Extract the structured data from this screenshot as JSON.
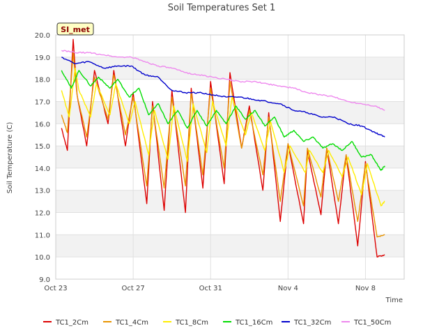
{
  "chart_data": {
    "type": "line",
    "title": "Soil Temperatures Set 1",
    "xlabel": "Time",
    "ylabel": "Soil Temperature (C)",
    "badge": "SI_met",
    "x_ticks": [
      "Oct 23",
      "Oct 27",
      "Oct 31",
      "Nov 4",
      "Nov 8"
    ],
    "x_tick_days": [
      0,
      4,
      8,
      12,
      16
    ],
    "xlim_days": [
      0,
      18
    ],
    "ylim": [
      9.0,
      20.0
    ],
    "y_ticks": [
      9.0,
      10.0,
      11.0,
      12.0,
      13.0,
      14.0,
      15.0,
      16.0,
      17.0,
      18.0,
      19.0,
      20.0
    ],
    "grid": true,
    "legend_position": "bottom",
    "series": [
      {
        "name": "TC1_2Cm",
        "color": "#dd0000",
        "x": [
          0.3,
          0.6,
          0.9,
          1.1,
          1.6,
          2.0,
          2.7,
          3.0,
          3.6,
          4.0,
          4.7,
          5.0,
          5.6,
          6.0,
          6.7,
          7.0,
          7.6,
          8.0,
          8.7,
          9.0,
          9.6,
          10.0,
          10.7,
          11.0,
          11.6,
          12.0,
          12.8,
          13.0,
          13.7,
          14.0,
          14.6,
          15.0,
          15.6,
          16.0,
          16.6,
          17.0
        ],
        "y": [
          15.8,
          14.8,
          19.8,
          17.3,
          15.0,
          18.4,
          16.0,
          18.4,
          15.0,
          17.4,
          12.4,
          17.0,
          12.1,
          17.5,
          12.0,
          17.6,
          13.1,
          17.9,
          13.3,
          18.3,
          14.9,
          16.8,
          13.0,
          16.5,
          11.6,
          15.1,
          11.5,
          14.8,
          11.9,
          14.9,
          11.5,
          14.6,
          10.5,
          14.3,
          10.0,
          10.1
        ]
      },
      {
        "name": "TC1_4Cm",
        "color": "#e89400",
        "x": [
          0.3,
          0.6,
          0.9,
          1.1,
          1.6,
          2.0,
          2.7,
          3.0,
          3.6,
          4.0,
          4.7,
          5.0,
          5.6,
          6.0,
          6.7,
          7.0,
          7.6,
          8.0,
          8.7,
          9.0,
          9.6,
          10.0,
          10.7,
          11.0,
          11.6,
          12.0,
          12.8,
          13.0,
          13.7,
          14.0,
          14.6,
          15.0,
          15.6,
          16.0,
          16.6,
          17.0
        ],
        "y": [
          16.4,
          15.6,
          19.2,
          17.3,
          15.4,
          18.1,
          16.2,
          18.2,
          15.5,
          17.2,
          13.2,
          16.8,
          13.1,
          17.2,
          13.2,
          17.4,
          13.7,
          17.6,
          14.0,
          17.9,
          14.9,
          16.6,
          13.7,
          16.3,
          12.5,
          15.1,
          12.3,
          14.9,
          12.7,
          14.9,
          12.5,
          14.6,
          11.6,
          14.2,
          10.9,
          11.0
        ]
      },
      {
        "name": "TC1_8Cm",
        "color": "#ffee00",
        "x": [
          0.3,
          0.7,
          1.0,
          1.2,
          1.8,
          2.1,
          2.8,
          3.1,
          3.8,
          4.1,
          4.8,
          5.1,
          5.8,
          6.1,
          6.8,
          7.1,
          7.8,
          8.1,
          8.8,
          9.1,
          9.8,
          10.1,
          10.8,
          11.1,
          11.8,
          12.1,
          12.9,
          13.1,
          13.8,
          14.1,
          14.8,
          15.1,
          15.8,
          16.1,
          16.8,
          17.0
        ],
        "y": [
          17.5,
          16.3,
          18.5,
          17.5,
          16.3,
          17.8,
          16.4,
          17.8,
          16.0,
          17.0,
          14.6,
          16.6,
          14.4,
          16.8,
          14.3,
          16.9,
          14.7,
          17.0,
          15.0,
          17.2,
          15.5,
          16.5,
          14.8,
          16.1,
          13.8,
          15.0,
          13.8,
          14.8,
          13.8,
          14.8,
          13.6,
          14.5,
          12.8,
          14.2,
          12.3,
          12.5
        ]
      },
      {
        "name": "TC1_16Cm",
        "color": "#00dd00",
        "x": [
          0.3,
          0.8,
          1.2,
          1.8,
          2.2,
          2.8,
          3.2,
          3.8,
          4.3,
          4.8,
          5.3,
          5.8,
          6.3,
          6.8,
          7.3,
          7.8,
          8.3,
          8.8,
          9.3,
          9.8,
          10.3,
          10.8,
          11.3,
          11.8,
          12.3,
          12.8,
          13.3,
          13.8,
          14.3,
          14.8,
          15.3,
          15.8,
          16.3,
          16.8,
          17.0
        ],
        "y": [
          18.4,
          17.6,
          18.4,
          17.7,
          18.1,
          17.6,
          18.0,
          17.2,
          17.6,
          16.4,
          16.9,
          16.0,
          16.6,
          15.8,
          16.6,
          15.9,
          16.6,
          16.0,
          16.8,
          16.2,
          16.6,
          15.9,
          16.3,
          15.4,
          15.7,
          15.2,
          15.4,
          14.9,
          15.1,
          14.8,
          15.2,
          14.5,
          14.6,
          13.9,
          14.1
        ]
      },
      {
        "name": "TC1_32Cm",
        "color": "#0000cc",
        "x": [
          0.3,
          1.0,
          1.7,
          2.5,
          3.2,
          3.9,
          4.6,
          5.3,
          6.0,
          6.7,
          7.4,
          8.1,
          8.8,
          9.5,
          10.2,
          10.9,
          11.6,
          12.3,
          13.0,
          13.7,
          14.4,
          15.1,
          15.8,
          16.5,
          17.0
        ],
        "y": [
          19.0,
          18.7,
          18.8,
          18.5,
          18.6,
          18.6,
          18.2,
          18.1,
          17.5,
          17.4,
          17.4,
          17.3,
          17.2,
          17.2,
          17.1,
          17.0,
          16.9,
          16.6,
          16.5,
          16.3,
          16.3,
          16.0,
          15.9,
          15.6,
          15.4
        ]
      },
      {
        "name": "TC1_50Cm",
        "color": "#ee88ee",
        "x": [
          0.3,
          1.0,
          1.7,
          2.5,
          3.2,
          3.9,
          4.6,
          5.3,
          6.0,
          6.7,
          7.4,
          8.1,
          8.8,
          9.5,
          10.2,
          10.9,
          11.6,
          12.3,
          13.0,
          13.7,
          14.4,
          15.1,
          15.8,
          16.5,
          17.0
        ],
        "y": [
          19.3,
          19.2,
          19.2,
          19.1,
          19.0,
          19.0,
          18.8,
          18.6,
          18.5,
          18.3,
          18.2,
          18.1,
          18.0,
          17.9,
          17.9,
          17.8,
          17.7,
          17.6,
          17.4,
          17.3,
          17.2,
          17.0,
          16.9,
          16.8,
          16.6
        ]
      }
    ]
  }
}
